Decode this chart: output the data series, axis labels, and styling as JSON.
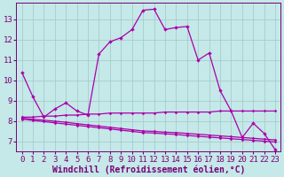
{
  "xlabel": "Windchill (Refroidissement éolien,°C)",
  "bg_color": "#c5e8e8",
  "line_color": "#aa00aa",
  "grid_color": "#a0c8c8",
  "line1_x": [
    0,
    1,
    2,
    3,
    4,
    5,
    6,
    7,
    8,
    9,
    10,
    11,
    12,
    13,
    14,
    15,
    16,
    17,
    18,
    19,
    20,
    21,
    22,
    23
  ],
  "line1_y": [
    10.4,
    9.2,
    8.2,
    8.6,
    8.9,
    8.5,
    8.3,
    11.3,
    11.9,
    12.1,
    12.5,
    13.45,
    13.5,
    12.5,
    12.6,
    12.65,
    11.0,
    11.35,
    9.5,
    8.5,
    7.2,
    7.9,
    7.4,
    6.6
  ],
  "line2_x": [
    0,
    1,
    2,
    3,
    4,
    5,
    6,
    7,
    8,
    9,
    10,
    11,
    12,
    13,
    14,
    15,
    16,
    17,
    18,
    19,
    20,
    21,
    22,
    23
  ],
  "line2_y": [
    8.2,
    8.2,
    8.25,
    8.25,
    8.3,
    8.3,
    8.35,
    8.35,
    8.4,
    8.4,
    8.4,
    8.4,
    8.4,
    8.45,
    8.45,
    8.45,
    8.45,
    8.45,
    8.5,
    8.5,
    8.5,
    8.5,
    8.5,
    8.5
  ],
  "line3_x": [
    0,
    1,
    2,
    3,
    4,
    5,
    6,
    7,
    8,
    9,
    10,
    11,
    12,
    13,
    14,
    15,
    16,
    17,
    18,
    19,
    20,
    21,
    22,
    23
  ],
  "line3_y": [
    8.15,
    8.1,
    8.05,
    8.0,
    7.95,
    7.88,
    7.82,
    7.76,
    7.7,
    7.64,
    7.58,
    7.52,
    7.5,
    7.46,
    7.44,
    7.4,
    7.36,
    7.32,
    7.28,
    7.24,
    7.2,
    7.16,
    7.12,
    7.08
  ],
  "line4_x": [
    0,
    1,
    2,
    3,
    4,
    5,
    6,
    7,
    8,
    9,
    10,
    11,
    12,
    13,
    14,
    15,
    16,
    17,
    18,
    19,
    20,
    21,
    22,
    23
  ],
  "line4_y": [
    8.1,
    8.04,
    7.98,
    7.92,
    7.86,
    7.8,
    7.74,
    7.68,
    7.62,
    7.56,
    7.5,
    7.44,
    7.42,
    7.38,
    7.35,
    7.3,
    7.26,
    7.22,
    7.18,
    7.14,
    7.1,
    7.06,
    7.02,
    6.98
  ],
  "ylim": [
    6.5,
    13.8
  ],
  "xlim": [
    -0.5,
    23.5
  ],
  "yticks": [
    7,
    8,
    9,
    10,
    11,
    12,
    13
  ],
  "xticks": [
    0,
    1,
    2,
    3,
    4,
    5,
    6,
    7,
    8,
    9,
    10,
    11,
    12,
    13,
    14,
    15,
    16,
    17,
    18,
    19,
    20,
    21,
    22,
    23
  ],
  "font_color": "#770077",
  "tick_fontsize": 6.5,
  "xlabel_fontsize": 7.0
}
